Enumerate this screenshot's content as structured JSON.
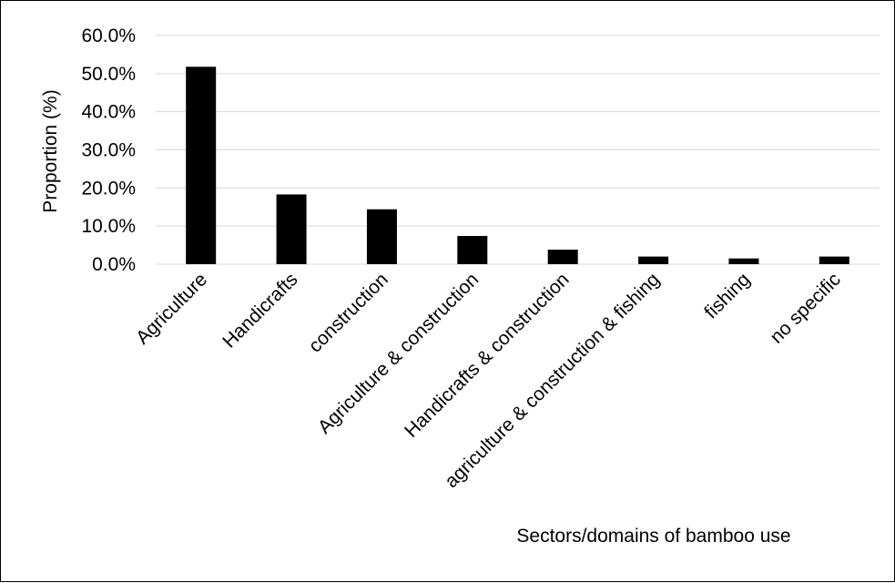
{
  "chart_data": {
    "type": "bar",
    "title": "",
    "xlabel": "Sectors/domains of bamboo use",
    "ylabel": "Proportion (%)",
    "categories": [
      "Agriculture",
      "Handicrafts",
      "construction",
      "Agriculture & construction",
      "Handicrafts & construction",
      "agriculture & construction & fishing",
      "fishing",
      "no specific"
    ],
    "values": [
      51.8,
      18.3,
      14.4,
      7.4,
      3.8,
      2.0,
      1.5,
      2.0
    ],
    "y_ticks": [
      "0.0%",
      "10.0%",
      "20.0%",
      "30.0%",
      "40.0%",
      "50.0%",
      "60.0%"
    ],
    "ylim": [
      0,
      60
    ],
    "grid": true,
    "legend": "none",
    "bar_color": "#000000",
    "grid_color": "#d9d9d9"
  }
}
